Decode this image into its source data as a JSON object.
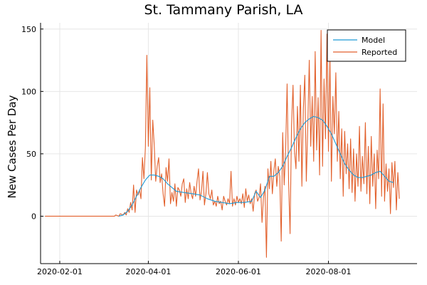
{
  "chart_data": {
    "type": "line",
    "title": "St. Tammany Parish, LA",
    "xlabel": "",
    "ylabel": "New Cases Per Day",
    "x_ticks": [
      "2020-02-01",
      "2020-04-01",
      "2020-06-01",
      "2020-08-01"
    ],
    "y_ticks": [
      0,
      50,
      100,
      150
    ],
    "xlim": [
      "2020-01-19",
      "2020-09-30"
    ],
    "ylim": [
      -38,
      155
    ],
    "grid": true,
    "legend_position": "top-right",
    "series": [
      {
        "name": "Model",
        "color": "#1f9ad6",
        "points": [
          [
            "2020-03-12",
            0
          ],
          [
            "2020-03-15",
            1
          ],
          [
            "2020-03-18",
            4
          ],
          [
            "2020-03-21",
            9
          ],
          [
            "2020-03-24",
            16
          ],
          [
            "2020-03-27",
            23
          ],
          [
            "2020-03-30",
            29
          ],
          [
            "2020-04-02",
            33
          ],
          [
            "2020-04-05",
            33
          ],
          [
            "2020-04-08",
            32
          ],
          [
            "2020-04-11",
            30
          ],
          [
            "2020-04-14",
            26
          ],
          [
            "2020-04-17",
            23
          ],
          [
            "2020-04-20",
            20
          ],
          [
            "2020-04-25",
            19
          ],
          [
            "2020-05-01",
            18
          ],
          [
            "2020-05-06",
            17
          ],
          [
            "2020-05-11",
            14
          ],
          [
            "2020-05-16",
            12
          ],
          [
            "2020-05-21",
            11
          ],
          [
            "2020-05-26",
            10
          ],
          [
            "2020-05-31",
            11
          ],
          [
            "2020-06-05",
            11
          ],
          [
            "2020-06-10",
            12
          ],
          [
            "2020-06-13",
            20
          ],
          [
            "2020-06-16",
            15
          ],
          [
            "2020-06-19",
            21
          ],
          [
            "2020-06-22",
            32
          ],
          [
            "2020-06-25",
            32
          ],
          [
            "2020-06-28",
            35
          ],
          [
            "2020-07-01",
            40
          ],
          [
            "2020-07-04",
            48
          ],
          [
            "2020-07-07",
            55
          ],
          [
            "2020-07-10",
            63
          ],
          [
            "2020-07-13",
            70
          ],
          [
            "2020-07-16",
            75
          ],
          [
            "2020-07-19",
            78
          ],
          [
            "2020-07-22",
            80
          ],
          [
            "2020-07-25",
            79
          ],
          [
            "2020-07-28",
            77
          ],
          [
            "2020-07-31",
            72
          ],
          [
            "2020-08-03",
            66
          ],
          [
            "2020-08-06",
            58
          ],
          [
            "2020-08-09",
            50
          ],
          [
            "2020-08-12",
            42
          ],
          [
            "2020-08-15",
            37
          ],
          [
            "2020-08-18",
            33
          ],
          [
            "2020-08-21",
            31
          ],
          [
            "2020-08-24",
            31
          ],
          [
            "2020-08-27",
            32
          ],
          [
            "2020-08-30",
            33
          ],
          [
            "2020-09-02",
            35
          ],
          [
            "2020-09-05",
            36
          ],
          [
            "2020-09-08",
            32
          ],
          [
            "2020-09-11",
            28
          ],
          [
            "2020-09-14",
            27
          ]
        ]
      },
      {
        "name": "Reported",
        "color": "#e2612d",
        "points": [
          [
            "2020-01-22",
            0
          ],
          [
            "2020-03-01",
            0
          ],
          [
            "2020-03-09",
            0
          ],
          [
            "2020-03-10",
            1
          ],
          [
            "2020-03-12",
            0
          ],
          [
            "2020-03-13",
            2
          ],
          [
            "2020-03-15",
            1
          ],
          [
            "2020-03-16",
            3
          ],
          [
            "2020-03-17",
            1
          ],
          [
            "2020-03-18",
            6
          ],
          [
            "2020-03-19",
            3
          ],
          [
            "2020-03-20",
            11
          ],
          [
            "2020-03-21",
            5
          ],
          [
            "2020-03-22",
            25
          ],
          [
            "2020-03-23",
            3
          ],
          [
            "2020-03-24",
            21
          ],
          [
            "2020-03-25",
            17
          ],
          [
            "2020-03-26",
            21
          ],
          [
            "2020-03-27",
            14
          ],
          [
            "2020-03-28",
            47
          ],
          [
            "2020-03-29",
            30
          ],
          [
            "2020-03-30",
            55
          ],
          [
            "2020-03-31",
            129
          ],
          [
            "2020-04-01",
            56
          ],
          [
            "2020-04-02",
            103
          ],
          [
            "2020-04-03",
            29
          ],
          [
            "2020-04-04",
            77
          ],
          [
            "2020-04-05",
            57
          ],
          [
            "2020-04-06",
            28
          ],
          [
            "2020-04-07",
            40
          ],
          [
            "2020-04-08",
            47
          ],
          [
            "2020-04-09",
            27
          ],
          [
            "2020-04-10",
            34
          ],
          [
            "2020-04-11",
            18
          ],
          [
            "2020-04-12",
            8
          ],
          [
            "2020-04-13",
            39
          ],
          [
            "2020-04-14",
            28
          ],
          [
            "2020-04-15",
            46
          ],
          [
            "2020-04-16",
            10
          ],
          [
            "2020-04-17",
            19
          ],
          [
            "2020-04-18",
            12
          ],
          [
            "2020-04-19",
            26
          ],
          [
            "2020-04-20",
            8
          ],
          [
            "2020-04-21",
            23
          ],
          [
            "2020-04-22",
            21
          ],
          [
            "2020-04-23",
            16
          ],
          [
            "2020-04-24",
            26
          ],
          [
            "2020-04-25",
            30
          ],
          [
            "2020-04-26",
            11
          ],
          [
            "2020-04-27",
            22
          ],
          [
            "2020-04-28",
            14
          ],
          [
            "2020-04-29",
            27
          ],
          [
            "2020-04-30",
            18
          ],
          [
            "2020-05-01",
            14
          ],
          [
            "2020-05-02",
            24
          ],
          [
            "2020-05-03",
            16
          ],
          [
            "2020-05-04",
            28
          ],
          [
            "2020-05-05",
            38
          ],
          [
            "2020-05-06",
            13
          ],
          [
            "2020-05-07",
            20
          ],
          [
            "2020-05-08",
            36
          ],
          [
            "2020-05-09",
            9
          ],
          [
            "2020-05-10",
            18
          ],
          [
            "2020-05-11",
            35
          ],
          [
            "2020-05-12",
            18
          ],
          [
            "2020-05-13",
            14
          ],
          [
            "2020-05-14",
            21
          ],
          [
            "2020-05-15",
            9
          ],
          [
            "2020-05-16",
            12
          ],
          [
            "2020-05-17",
            8
          ],
          [
            "2020-05-18",
            16
          ],
          [
            "2020-05-19",
            10
          ],
          [
            "2020-05-20",
            12
          ],
          [
            "2020-05-21",
            5
          ],
          [
            "2020-05-22",
            16
          ],
          [
            "2020-05-23",
            12
          ],
          [
            "2020-05-24",
            9
          ],
          [
            "2020-05-25",
            14
          ],
          [
            "2020-05-26",
            10
          ],
          [
            "2020-05-27",
            36
          ],
          [
            "2020-05-28",
            8
          ],
          [
            "2020-05-29",
            14
          ],
          [
            "2020-05-30",
            9
          ],
          [
            "2020-05-31",
            16
          ],
          [
            "2020-06-01",
            11
          ],
          [
            "2020-06-02",
            14
          ],
          [
            "2020-06-03",
            10
          ],
          [
            "2020-06-04",
            18
          ],
          [
            "2020-06-05",
            7
          ],
          [
            "2020-06-06",
            22
          ],
          [
            "2020-06-07",
            12
          ],
          [
            "2020-06-08",
            17
          ],
          [
            "2020-06-09",
            10
          ],
          [
            "2020-06-10",
            14
          ],
          [
            "2020-06-11",
            4
          ],
          [
            "2020-06-12",
            18
          ],
          [
            "2020-06-13",
            21
          ],
          [
            "2020-06-14",
            12
          ],
          [
            "2020-06-15",
            15
          ],
          [
            "2020-06-16",
            26
          ],
          [
            "2020-06-17",
            -5
          ],
          [
            "2020-06-18",
            15
          ],
          [
            "2020-06-19",
            24
          ],
          [
            "2020-06-20",
            -33
          ],
          [
            "2020-06-21",
            38
          ],
          [
            "2020-06-22",
            22
          ],
          [
            "2020-06-23",
            44
          ],
          [
            "2020-06-24",
            18
          ],
          [
            "2020-06-25",
            36
          ],
          [
            "2020-06-26",
            46
          ],
          [
            "2020-06-27",
            24
          ],
          [
            "2020-06-28",
            40
          ],
          [
            "2020-06-29",
            32
          ],
          [
            "2020-06-30",
            -20
          ],
          [
            "2020-07-01",
            67
          ],
          [
            "2020-07-02",
            25
          ],
          [
            "2020-07-03",
            53
          ],
          [
            "2020-07-04",
            106
          ],
          [
            "2020-07-05",
            28
          ],
          [
            "2020-07-06",
            -14
          ],
          [
            "2020-07-07",
            73
          ],
          [
            "2020-07-08",
            105
          ],
          [
            "2020-07-09",
            52
          ],
          [
            "2020-07-10",
            38
          ],
          [
            "2020-07-11",
            88
          ],
          [
            "2020-07-12",
            44
          ],
          [
            "2020-07-13",
            105
          ],
          [
            "2020-07-14",
            24
          ],
          [
            "2020-07-15",
            86
          ],
          [
            "2020-07-16",
            113
          ],
          [
            "2020-07-17",
            28
          ],
          [
            "2020-07-18",
            72
          ],
          [
            "2020-07-19",
            125
          ],
          [
            "2020-07-20",
            56
          ],
          [
            "2020-07-21",
            96
          ],
          [
            "2020-07-22",
            44
          ],
          [
            "2020-07-23",
            132
          ],
          [
            "2020-07-24",
            53
          ],
          [
            "2020-07-25",
            95
          ],
          [
            "2020-07-26",
            33
          ],
          [
            "2020-07-27",
            149
          ],
          [
            "2020-07-28",
            40
          ],
          [
            "2020-07-29",
            110
          ],
          [
            "2020-07-30",
            62
          ],
          [
            "2020-07-31",
            146
          ],
          [
            "2020-08-01",
            52
          ],
          [
            "2020-08-02",
            128
          ],
          [
            "2020-08-03",
            28
          ],
          [
            "2020-08-04",
            96
          ],
          [
            "2020-08-05",
            66
          ],
          [
            "2020-08-06",
            115
          ],
          [
            "2020-08-07",
            44
          ],
          [
            "2020-08-08",
            84
          ],
          [
            "2020-08-09",
            30
          ],
          [
            "2020-08-10",
            70
          ],
          [
            "2020-08-11",
            16
          ],
          [
            "2020-08-12",
            68
          ],
          [
            "2020-08-13",
            34
          ],
          [
            "2020-08-14",
            58
          ],
          [
            "2020-08-15",
            22
          ],
          [
            "2020-08-16",
            62
          ],
          [
            "2020-08-17",
            19
          ],
          [
            "2020-08-18",
            54
          ],
          [
            "2020-08-19",
            12
          ],
          [
            "2020-08-20",
            50
          ],
          [
            "2020-08-21",
            24
          ],
          [
            "2020-08-22",
            72
          ],
          [
            "2020-08-23",
            20
          ],
          [
            "2020-08-24",
            48
          ],
          [
            "2020-08-25",
            26
          ],
          [
            "2020-08-26",
            75
          ],
          [
            "2020-08-27",
            18
          ],
          [
            "2020-08-28",
            56
          ],
          [
            "2020-08-29",
            10
          ],
          [
            "2020-08-30",
            64
          ],
          [
            "2020-08-31",
            24
          ],
          [
            "2020-09-01",
            50
          ],
          [
            "2020-09-02",
            6
          ],
          [
            "2020-09-03",
            53
          ],
          [
            "2020-09-04",
            30
          ],
          [
            "2020-09-05",
            102
          ],
          [
            "2020-09-06",
            16
          ],
          [
            "2020-09-07",
            90
          ],
          [
            "2020-09-08",
            12
          ],
          [
            "2020-09-09",
            42
          ],
          [
            "2020-09-10",
            20
          ],
          [
            "2020-09-11",
            38
          ],
          [
            "2020-09-12",
            2
          ],
          [
            "2020-09-13",
            43
          ],
          [
            "2020-09-14",
            23
          ],
          [
            "2020-09-15",
            44
          ],
          [
            "2020-09-16",
            5
          ],
          [
            "2020-09-17",
            35
          ],
          [
            "2020-09-18",
            14
          ]
        ]
      }
    ]
  }
}
